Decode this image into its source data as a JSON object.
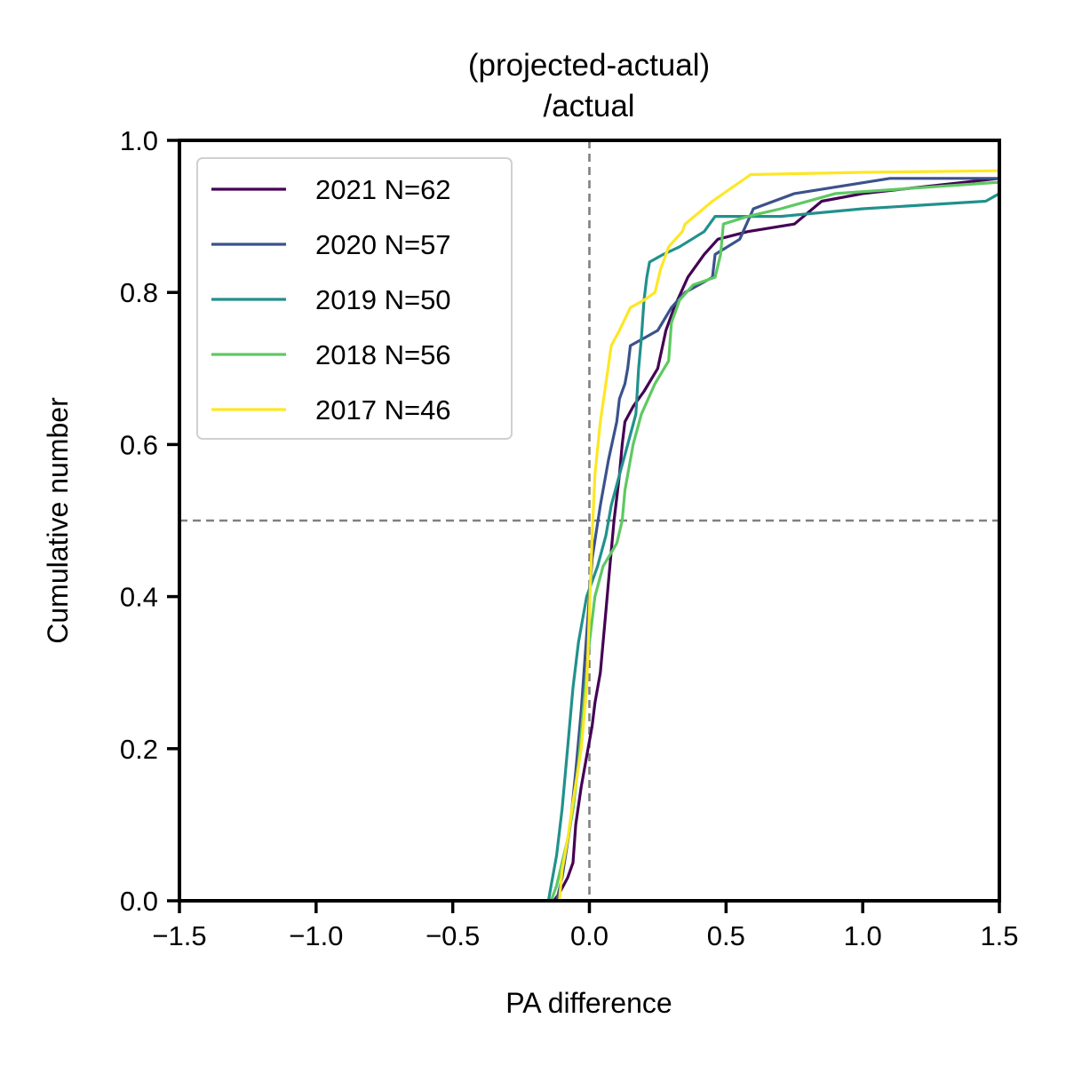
{
  "chart_data": {
    "type": "line",
    "title_lines": [
      "(projected-actual)",
      "/actual"
    ],
    "xlabel": "PA difference",
    "ylabel": "Cumulative number",
    "xlim": [
      -1.5,
      1.5
    ],
    "ylim": [
      0.0,
      1.0
    ],
    "x_ticks": [
      -1.5,
      -1.0,
      -0.5,
      0.0,
      0.5,
      1.0,
      1.5
    ],
    "x_tick_labels": [
      "−1.5",
      "−1.0",
      "−0.5",
      "0.0",
      "0.5",
      "1.0",
      "1.5"
    ],
    "y_ticks": [
      0.0,
      0.2,
      0.4,
      0.6,
      0.8,
      1.0
    ],
    "y_tick_labels": [
      "0.0",
      "0.2",
      "0.4",
      "0.6",
      "0.8",
      "1.0"
    ],
    "grid": false,
    "legend_position": "top-left",
    "reference_lines": [
      {
        "orientation": "vertical",
        "value": 0.0,
        "style": "dashed",
        "color": "#808080"
      },
      {
        "orientation": "horizontal",
        "value": 0.5,
        "style": "dashed",
        "color": "#808080"
      }
    ],
    "series": [
      {
        "name": "2021 N=62",
        "color": "#440154",
        "points": [
          [
            -0.13,
            0.0
          ],
          [
            -0.11,
            0.01
          ],
          [
            -0.08,
            0.03
          ],
          [
            -0.06,
            0.05
          ],
          [
            -0.05,
            0.1
          ],
          [
            -0.03,
            0.15
          ],
          [
            -0.01,
            0.19
          ],
          [
            0.01,
            0.23
          ],
          [
            0.02,
            0.26
          ],
          [
            0.04,
            0.3
          ],
          [
            0.05,
            0.34
          ],
          [
            0.06,
            0.38
          ],
          [
            0.07,
            0.42
          ],
          [
            0.08,
            0.46
          ],
          [
            0.09,
            0.5
          ],
          [
            0.1,
            0.53
          ],
          [
            0.11,
            0.56
          ],
          [
            0.12,
            0.6
          ],
          [
            0.13,
            0.63
          ],
          [
            0.16,
            0.65
          ],
          [
            0.2,
            0.67
          ],
          [
            0.25,
            0.7
          ],
          [
            0.28,
            0.75
          ],
          [
            0.31,
            0.78
          ],
          [
            0.36,
            0.82
          ],
          [
            0.42,
            0.85
          ],
          [
            0.47,
            0.87
          ],
          [
            0.58,
            0.88
          ],
          [
            0.75,
            0.89
          ],
          [
            0.85,
            0.92
          ],
          [
            1.0,
            0.93
          ],
          [
            1.5,
            0.95
          ]
        ]
      },
      {
        "name": "2020 N=57",
        "color": "#3b528b",
        "points": [
          [
            -0.12,
            0.0
          ],
          [
            -0.1,
            0.03
          ],
          [
            -0.07,
            0.1
          ],
          [
            -0.05,
            0.17
          ],
          [
            -0.03,
            0.25
          ],
          [
            -0.01,
            0.35
          ],
          [
            0.01,
            0.45
          ],
          [
            0.04,
            0.52
          ],
          [
            0.07,
            0.58
          ],
          [
            0.1,
            0.63
          ],
          [
            0.11,
            0.66
          ],
          [
            0.13,
            0.68
          ],
          [
            0.14,
            0.7
          ],
          [
            0.15,
            0.73
          ],
          [
            0.2,
            0.74
          ],
          [
            0.25,
            0.75
          ],
          [
            0.3,
            0.78
          ],
          [
            0.35,
            0.8
          ],
          [
            0.45,
            0.82
          ],
          [
            0.46,
            0.85
          ],
          [
            0.55,
            0.87
          ],
          [
            0.6,
            0.91
          ],
          [
            0.75,
            0.93
          ],
          [
            1.1,
            0.95
          ],
          [
            1.5,
            0.95
          ]
        ]
      },
      {
        "name": "2019 N=50",
        "color": "#21918c",
        "points": [
          [
            -0.15,
            0.0
          ],
          [
            -0.14,
            0.02
          ],
          [
            -0.12,
            0.06
          ],
          [
            -0.1,
            0.12
          ],
          [
            -0.08,
            0.2
          ],
          [
            -0.06,
            0.28
          ],
          [
            -0.04,
            0.34
          ],
          [
            -0.01,
            0.4
          ],
          [
            0.03,
            0.44
          ],
          [
            0.06,
            0.48
          ],
          [
            0.08,
            0.52
          ],
          [
            0.11,
            0.56
          ],
          [
            0.14,
            0.6
          ],
          [
            0.17,
            0.64
          ],
          [
            0.18,
            0.7
          ],
          [
            0.19,
            0.74
          ],
          [
            0.2,
            0.79
          ],
          [
            0.21,
            0.82
          ],
          [
            0.22,
            0.84
          ],
          [
            0.27,
            0.85
          ],
          [
            0.33,
            0.86
          ],
          [
            0.42,
            0.88
          ],
          [
            0.46,
            0.9
          ],
          [
            0.7,
            0.9
          ],
          [
            1.0,
            0.91
          ],
          [
            1.45,
            0.92
          ],
          [
            1.5,
            0.93
          ]
        ]
      },
      {
        "name": "2018 N=56",
        "color": "#5ec962",
        "points": [
          [
            -0.14,
            0.0
          ],
          [
            -0.12,
            0.02
          ],
          [
            -0.1,
            0.05
          ],
          [
            -0.08,
            0.08
          ],
          [
            -0.06,
            0.12
          ],
          [
            -0.04,
            0.18
          ],
          [
            -0.02,
            0.26
          ],
          [
            0.0,
            0.34
          ],
          [
            0.02,
            0.4
          ],
          [
            0.05,
            0.44
          ],
          [
            0.1,
            0.47
          ],
          [
            0.12,
            0.5
          ],
          [
            0.13,
            0.54
          ],
          [
            0.16,
            0.6
          ],
          [
            0.19,
            0.64
          ],
          [
            0.24,
            0.68
          ],
          [
            0.29,
            0.71
          ],
          [
            0.3,
            0.76
          ],
          [
            0.33,
            0.79
          ],
          [
            0.38,
            0.81
          ],
          [
            0.46,
            0.82
          ],
          [
            0.48,
            0.85
          ],
          [
            0.49,
            0.89
          ],
          [
            0.58,
            0.9
          ],
          [
            0.7,
            0.91
          ],
          [
            0.9,
            0.93
          ],
          [
            1.5,
            0.945
          ]
        ]
      },
      {
        "name": "2017 N=46",
        "color": "#fde725",
        "points": [
          [
            -0.11,
            0.0
          ],
          [
            -0.1,
            0.04
          ],
          [
            -0.08,
            0.08
          ],
          [
            -0.06,
            0.13
          ],
          [
            -0.03,
            0.2
          ],
          [
            -0.01,
            0.28
          ],
          [
            0.0,
            0.38
          ],
          [
            0.01,
            0.48
          ],
          [
            0.02,
            0.56
          ],
          [
            0.04,
            0.63
          ],
          [
            0.06,
            0.68
          ],
          [
            0.08,
            0.73
          ],
          [
            0.11,
            0.75
          ],
          [
            0.15,
            0.78
          ],
          [
            0.2,
            0.79
          ],
          [
            0.24,
            0.8
          ],
          [
            0.26,
            0.83
          ],
          [
            0.29,
            0.86
          ],
          [
            0.34,
            0.88
          ],
          [
            0.35,
            0.89
          ],
          [
            0.45,
            0.92
          ],
          [
            0.59,
            0.955
          ],
          [
            1.0,
            0.958
          ],
          [
            1.5,
            0.96
          ]
        ]
      }
    ]
  }
}
